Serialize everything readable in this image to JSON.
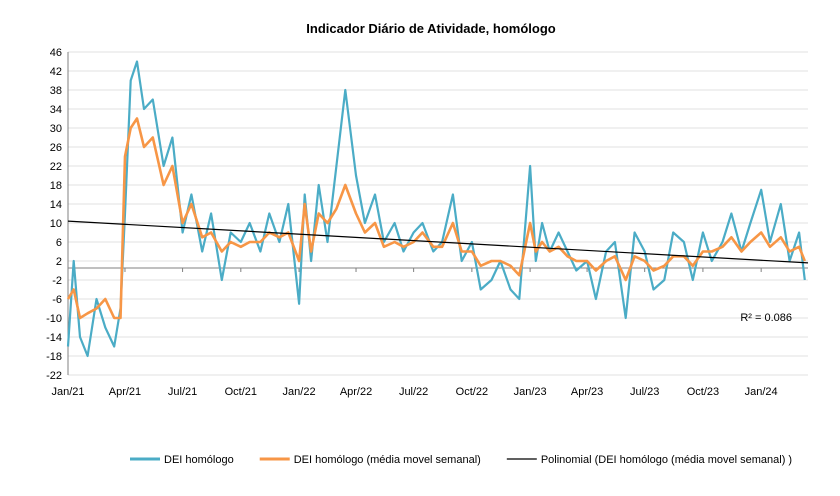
{
  "chart_data": {
    "type": "line",
    "title": "Indicador Diário de Atividade, homólogo",
    "xlabel": "",
    "ylabel": "",
    "ylim": [
      -22,
      46
    ],
    "y_ticks": [
      46,
      42,
      38,
      34,
      30,
      26,
      22,
      18,
      14,
      10,
      6,
      2,
      -2,
      -6,
      -10,
      -14,
      -18,
      -22
    ],
    "x_start": "2021-01-01",
    "x_end": "2024-03-15",
    "x_ticks": [
      {
        "label": "Jan/21",
        "date": "2021-01-01"
      },
      {
        "label": "Apr/21",
        "date": "2021-04-01"
      },
      {
        "label": "Jul/21",
        "date": "2021-07-01"
      },
      {
        "label": "Oct/21",
        "date": "2021-10-01"
      },
      {
        "label": "Jan/22",
        "date": "2022-01-01"
      },
      {
        "label": "Apr/22",
        "date": "2022-04-01"
      },
      {
        "label": "Jul/22",
        "date": "2022-07-01"
      },
      {
        "label": "Oct/22",
        "date": "2022-10-01"
      },
      {
        "label": "Jan/23",
        "date": "2023-01-01"
      },
      {
        "label": "Apr/23",
        "date": "2023-04-01"
      },
      {
        "label": "Jul/23",
        "date": "2023-07-01"
      },
      {
        "label": "Oct/23",
        "date": "2023-10-01"
      },
      {
        "label": "Jan/24",
        "date": "2024-01-01"
      }
    ],
    "grid": true,
    "legend_position": "bottom",
    "annotation": "R² = 0.086",
    "series": [
      {
        "name": "DEI homólogo",
        "color": "#4BACC6",
        "x": [
          "2021-01-01",
          "2021-01-10",
          "2021-01-20",
          "2021-02-01",
          "2021-02-15",
          "2021-03-01",
          "2021-03-15",
          "2021-03-25",
          "2021-04-01",
          "2021-04-10",
          "2021-04-20",
          "2021-05-01",
          "2021-05-15",
          "2021-06-01",
          "2021-06-15",
          "2021-07-01",
          "2021-07-15",
          "2021-08-01",
          "2021-08-15",
          "2021-09-01",
          "2021-09-15",
          "2021-10-01",
          "2021-10-15",
          "2021-11-01",
          "2021-11-15",
          "2021-12-01",
          "2021-12-15",
          "2022-01-01",
          "2022-01-10",
          "2022-01-20",
          "2022-02-01",
          "2022-02-15",
          "2022-03-01",
          "2022-03-15",
          "2022-04-01",
          "2022-04-15",
          "2022-05-01",
          "2022-05-15",
          "2022-06-01",
          "2022-06-15",
          "2022-07-01",
          "2022-07-15",
          "2022-08-01",
          "2022-08-15",
          "2022-09-01",
          "2022-09-15",
          "2022-10-01",
          "2022-10-15",
          "2022-11-01",
          "2022-11-15",
          "2022-12-01",
          "2022-12-15",
          "2023-01-01",
          "2023-01-10",
          "2023-01-20",
          "2023-02-01",
          "2023-02-15",
          "2023-03-01",
          "2023-03-15",
          "2023-04-01",
          "2023-04-15",
          "2023-05-01",
          "2023-05-15",
          "2023-06-01",
          "2023-06-15",
          "2023-07-01",
          "2023-07-15",
          "2023-08-01",
          "2023-08-15",
          "2023-09-01",
          "2023-09-15",
          "2023-10-01",
          "2023-10-15",
          "2023-11-01",
          "2023-11-15",
          "2023-12-01",
          "2023-12-15",
          "2024-01-01",
          "2024-01-15",
          "2024-02-01",
          "2024-02-15",
          "2024-03-01",
          "2024-03-10"
        ],
        "values": [
          -16,
          2,
          -14,
          -18,
          -6,
          -12,
          -16,
          -8,
          12,
          40,
          44,
          34,
          36,
          22,
          28,
          8,
          16,
          4,
          12,
          -2,
          8,
          6,
          10,
          4,
          12,
          6,
          14,
          -7,
          16,
          2,
          18,
          6,
          22,
          38,
          20,
          10,
          16,
          6,
          10,
          4,
          8,
          10,
          4,
          6,
          16,
          2,
          6,
          -4,
          -2,
          2,
          -4,
          -6,
          22,
          2,
          10,
          4,
          8,
          4,
          0,
          2,
          -6,
          4,
          6,
          -10,
          8,
          4,
          -4,
          -2,
          8,
          6,
          -2,
          8,
          2,
          6,
          12,
          4,
          10,
          17,
          6,
          14,
          2,
          8,
          -2
        ]
      },
      {
        "name": "DEI homólogo (média movel semanal)",
        "color": "#F79646",
        "x": [
          "2021-01-01",
          "2021-01-10",
          "2021-01-20",
          "2021-02-01",
          "2021-02-15",
          "2021-03-01",
          "2021-03-15",
          "2021-03-25",
          "2021-04-01",
          "2021-04-10",
          "2021-04-20",
          "2021-05-01",
          "2021-05-15",
          "2021-06-01",
          "2021-06-15",
          "2021-07-01",
          "2021-07-15",
          "2021-08-01",
          "2021-08-15",
          "2021-09-01",
          "2021-09-15",
          "2021-10-01",
          "2021-10-15",
          "2021-11-01",
          "2021-11-15",
          "2021-12-01",
          "2021-12-15",
          "2022-01-01",
          "2022-01-10",
          "2022-01-20",
          "2022-02-01",
          "2022-02-15",
          "2022-03-01",
          "2022-03-15",
          "2022-04-01",
          "2022-04-15",
          "2022-05-01",
          "2022-05-15",
          "2022-06-01",
          "2022-06-15",
          "2022-07-01",
          "2022-07-15",
          "2022-08-01",
          "2022-08-15",
          "2022-09-01",
          "2022-09-15",
          "2022-10-01",
          "2022-10-15",
          "2022-11-01",
          "2022-11-15",
          "2022-12-01",
          "2022-12-15",
          "2023-01-01",
          "2023-01-10",
          "2023-01-20",
          "2023-02-01",
          "2023-02-15",
          "2023-03-01",
          "2023-03-15",
          "2023-04-01",
          "2023-04-15",
          "2023-05-01",
          "2023-05-15",
          "2023-06-01",
          "2023-06-15",
          "2023-07-01",
          "2023-07-15",
          "2023-08-01",
          "2023-08-15",
          "2023-09-01",
          "2023-09-15",
          "2023-10-01",
          "2023-10-15",
          "2023-11-01",
          "2023-11-15",
          "2023-12-01",
          "2023-12-15",
          "2024-01-01",
          "2024-01-15",
          "2024-02-01",
          "2024-02-15",
          "2024-03-01",
          "2024-03-10"
        ],
        "values": [
          -6,
          -4,
          -10,
          -9,
          -8,
          -6,
          -10,
          -10,
          24,
          30,
          32,
          26,
          28,
          18,
          22,
          10,
          14,
          7,
          8,
          4,
          6,
          5,
          6,
          6,
          8,
          7,
          8,
          2,
          14,
          4,
          12,
          10,
          13,
          18,
          12,
          8,
          10,
          5,
          6,
          5,
          6,
          8,
          5,
          5,
          10,
          4,
          4,
          1,
          2,
          2,
          1,
          -1,
          10,
          4,
          6,
          4,
          5,
          3,
          2,
          2,
          0,
          2,
          3,
          -2,
          3,
          2,
          0,
          1,
          3,
          3,
          1,
          4,
          4,
          5,
          7,
          4,
          6,
          8,
          5,
          7,
          4,
          5,
          2
        ]
      },
      {
        "name": "Polinomial (DEI homólogo (média movel semanal) )",
        "color": "#000000",
        "x": [
          "2021-01-01",
          "2024-03-15"
        ],
        "values": [
          10.4,
          1.6
        ]
      }
    ]
  }
}
